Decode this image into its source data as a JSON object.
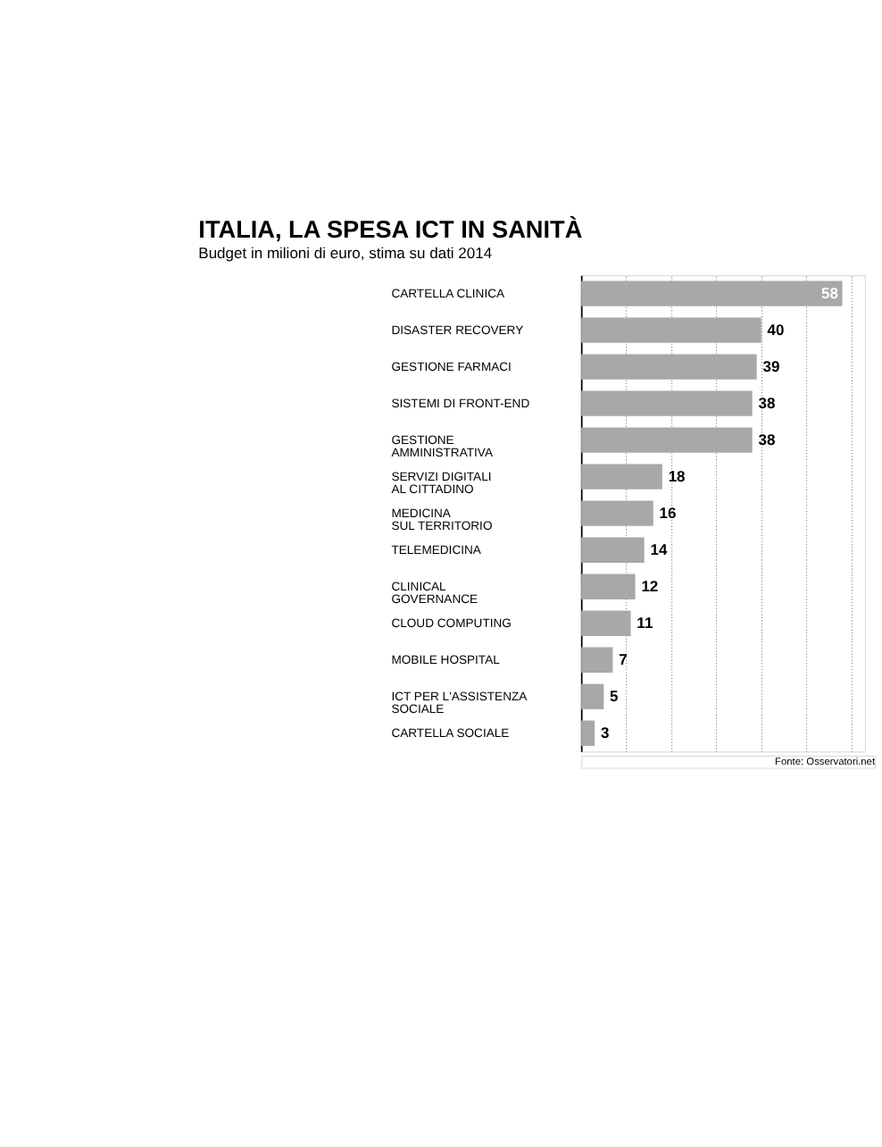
{
  "chart_data": {
    "type": "bar",
    "orientation": "horizontal",
    "title": "ITALIA, LA SPESA ICT IN SANITÀ",
    "subtitle": "Budget in milioni di euro, stima su dati 2014",
    "categories": [
      "CARTELLA CLINICA",
      "DISASTER RECOVERY",
      "GESTIONE FARMACI",
      "SISTEMI DI FRONT-END",
      "GESTIONE\nAMMINISTRATIVA",
      "SERVIZI DIGITALI\nAL CITTADINO",
      "MEDICINA\nSUL TERRITORIO",
      "TELEMEDICINA",
      "CLINICAL\nGOVERNANCE",
      "CLOUD COMPUTING",
      "MOBILE HOSPITAL",
      "ICT PER L'ASSISTENZA\nSOCIALE",
      "CARTELLA SOCIALE"
    ],
    "values": [
      58,
      40,
      39,
      38,
      38,
      18,
      16,
      14,
      12,
      11,
      7,
      5,
      3
    ],
    "color": "#a8a8a8",
    "data_labels": true,
    "xlim": [
      0,
      63
    ],
    "xticks": [
      {
        "value": 0,
        "label": null
      },
      {
        "value": 10,
        "label": null
      },
      {
        "value": 20,
        "label": null
      },
      {
        "value": 30,
        "label": null
      },
      {
        "value": 40,
        "label": null
      },
      {
        "value": 50,
        "label": null
      },
      {
        "value": 60,
        "label": null
      }
    ],
    "grid": "x",
    "tick_labels": "y",
    "annotations": [
      "Fonte: Osservatori.net"
    ]
  }
}
